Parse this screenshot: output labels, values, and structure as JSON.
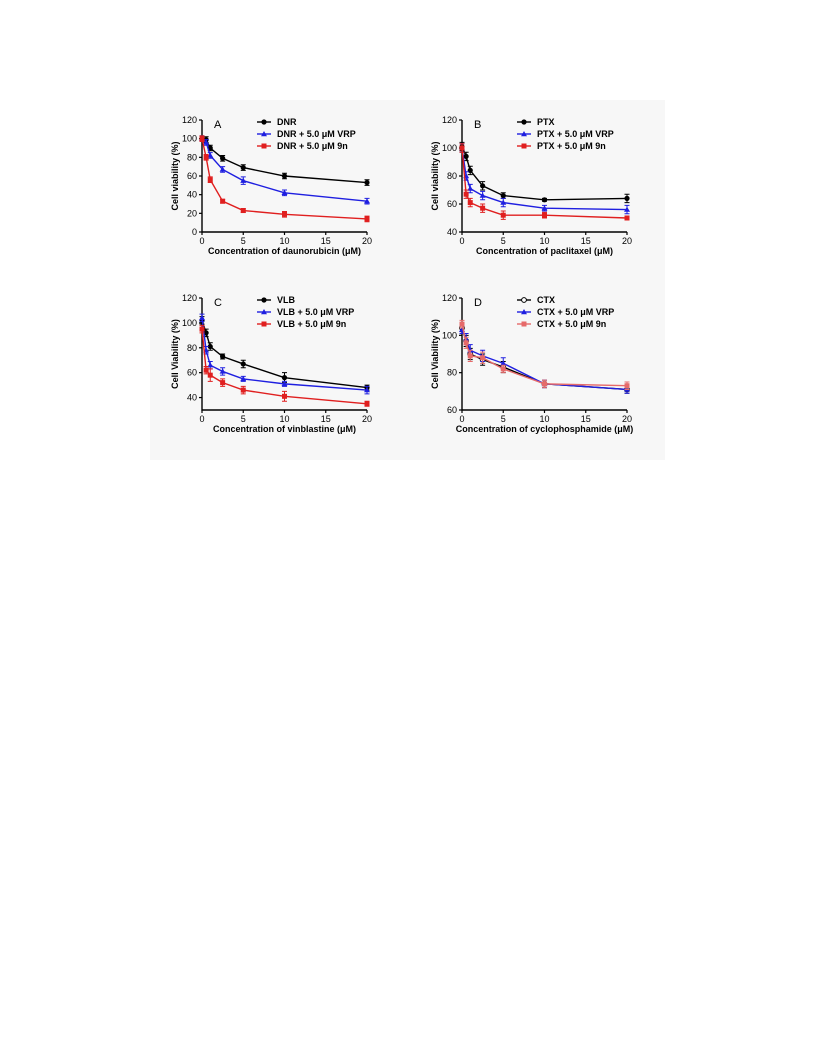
{
  "chart_data": [
    {
      "panel": "A",
      "type": "line",
      "xlabel": "Concentration of daunorubicin (μM)",
      "ylabel": "Cell viability (%)",
      "xlim": [
        0,
        20
      ],
      "ylim": [
        0,
        120
      ],
      "xticks": [
        0,
        5,
        10,
        15,
        20
      ],
      "yticks": [
        0,
        20,
        40,
        60,
        80,
        100,
        120
      ],
      "x": [
        0,
        0.5,
        1,
        2.5,
        5,
        10,
        20
      ],
      "series": [
        {
          "name": "DNR",
          "color": "#000000",
          "marker": "circle",
          "values": [
            100,
            99,
            90,
            79,
            69,
            60,
            53
          ],
          "errors": [
            3,
            3,
            3,
            3,
            3,
            3,
            3
          ]
        },
        {
          "name": "DNR  + 5.0 μM VRP",
          "color": "#1f1fe0",
          "marker": "triangle",
          "values": [
            100,
            96,
            82,
            67,
            55,
            42,
            33
          ],
          "errors": [
            3,
            3,
            3,
            3,
            4,
            3,
            3
          ]
        },
        {
          "name": "DNR  + 5.0 μM 9n",
          "color": "#e01f1f",
          "marker": "square",
          "values": [
            100,
            80,
            56,
            33,
            23,
            19,
            14
          ],
          "errors": [
            3,
            3,
            3,
            2,
            2,
            3,
            3
          ]
        }
      ]
    },
    {
      "panel": "B",
      "type": "line",
      "xlabel": "Concentration of paclitaxel (μM)",
      "ylabel": "Cell viability (%)",
      "xlim": [
        0,
        20
      ],
      "ylim": [
        40,
        120
      ],
      "xticks": [
        0,
        5,
        10,
        15,
        20
      ],
      "yticks": [
        40,
        60,
        80,
        100,
        120
      ],
      "x": [
        0,
        0.5,
        1,
        2.5,
        5,
        10,
        20
      ],
      "series": [
        {
          "name": "PTX",
          "color": "#000000",
          "marker": "circle",
          "values": [
            101,
            94,
            84,
            73,
            66,
            63,
            64
          ],
          "errors": [
            3,
            3,
            3,
            3,
            2,
            1,
            3
          ]
        },
        {
          "name": "PTX + 5.0 μM VRP",
          "color": "#1f1fe0",
          "marker": "triangle",
          "values": [
            100,
            80,
            71,
            66,
            61,
            57,
            56
          ],
          "errors": [
            3,
            3,
            3,
            3,
            3,
            2,
            3
          ]
        },
        {
          "name": "PTX + 5.0 μM 9n",
          "color": "#e01f1f",
          "marker": "square",
          "values": [
            100,
            67,
            61,
            57,
            52,
            52,
            50
          ],
          "errors": [
            3,
            3,
            3,
            3,
            3,
            2,
            1
          ]
        }
      ]
    },
    {
      "panel": "C",
      "type": "line",
      "xlabel": "Concentration of vinblastine (μM)",
      "ylabel": "Cell Viability (%)",
      "xlim": [
        0,
        20
      ],
      "ylim": [
        30,
        120
      ],
      "xticks": [
        0,
        5,
        10,
        15,
        20
      ],
      "yticks": [
        40,
        60,
        80,
        100,
        120
      ],
      "x": [
        0,
        0.5,
        1,
        2.5,
        5,
        10,
        20
      ],
      "series": [
        {
          "name": "VLB",
          "color": "#000000",
          "marker": "circle",
          "values": [
            102,
            92,
            81,
            73,
            67,
            56,
            48
          ],
          "errors": [
            3,
            3,
            3,
            2,
            3,
            4,
            2
          ]
        },
        {
          "name": "VLB + 5.0 μM VRP",
          "color": "#1f1fe0",
          "marker": "triangle",
          "values": [
            104,
            78,
            66,
            61,
            55,
            51,
            46
          ],
          "errors": [
            3,
            3,
            3,
            3,
            2,
            2,
            3
          ]
        },
        {
          "name": "VLB + 5.0 μM 9n",
          "color": "#e01f1f",
          "marker": "square",
          "values": [
            95,
            62,
            58,
            52,
            46,
            41,
            35
          ],
          "errors": [
            3,
            3,
            5,
            3,
            3,
            4,
            2
          ]
        }
      ]
    },
    {
      "panel": "D",
      "type": "line",
      "xlabel": "Concentration of cyclophosphamide (μM)",
      "ylabel": "Cell Viability (%)",
      "xlim": [
        0,
        20
      ],
      "ylim": [
        60,
        120
      ],
      "xticks": [
        0,
        5,
        10,
        15,
        20
      ],
      "yticks": [
        60,
        80,
        100,
        120
      ],
      "x": [
        0,
        0.5,
        1,
        2.5,
        5,
        10,
        20
      ],
      "series": [
        {
          "name": "CTX",
          "color": "#000000",
          "marker": "circle-open",
          "values": [
            104,
            97,
            90,
            87,
            83,
            74,
            71
          ],
          "errors": [
            2,
            3,
            3,
            3,
            3,
            2,
            2
          ]
        },
        {
          "name": "CTX + 5.0 μM VRP",
          "color": "#1f1fe0",
          "marker": "triangle",
          "values": [
            103,
            98,
            92,
            89,
            85,
            74,
            71
          ],
          "errors": [
            2,
            3,
            3,
            3,
            3,
            2,
            2
          ]
        },
        {
          "name": "CTX + 5.0 μM 9n",
          "color": "#e66a6a",
          "marker": "square",
          "values": [
            106,
            96,
            89,
            88,
            82,
            74,
            73
          ],
          "errors": [
            2,
            3,
            3,
            3,
            2,
            2,
            2
          ]
        }
      ]
    }
  ]
}
